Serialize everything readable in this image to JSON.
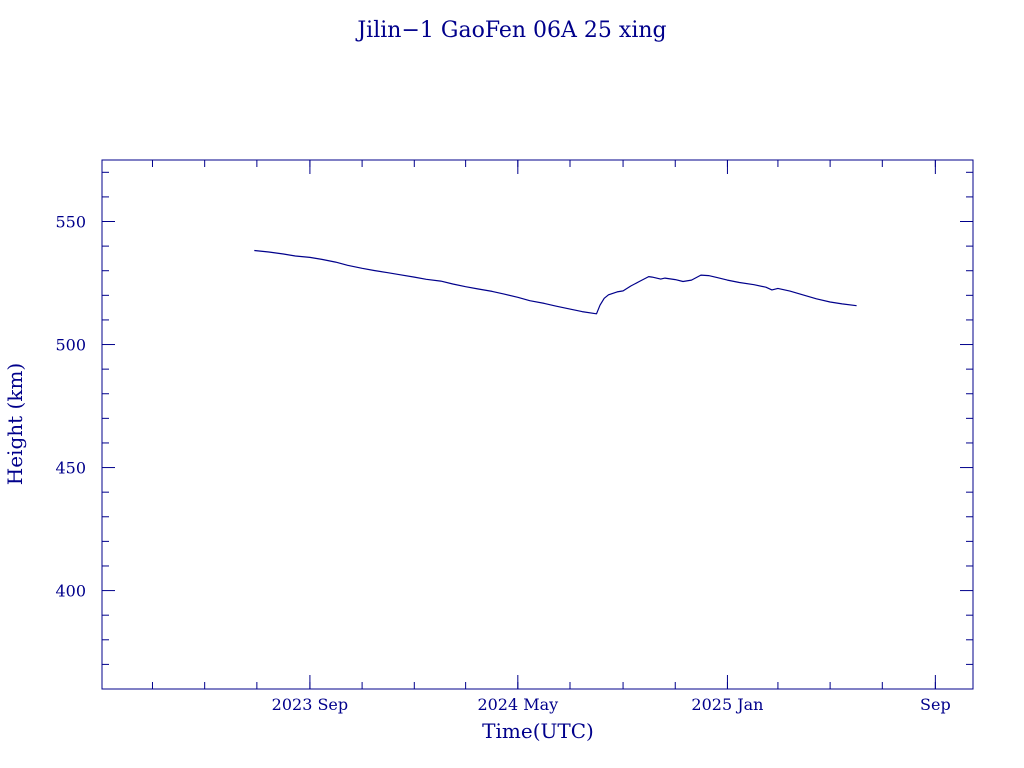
{
  "chart_data": {
    "type": "line",
    "title": "Jilin−1 GaoFen 06A 25 xing",
    "xlabel": "Time(UTC)",
    "ylabel": "Height (km)",
    "color": "#00008b",
    "xlim": [
      "2023-01-01",
      "2025-10-15"
    ],
    "ylim": [
      360,
      575
    ],
    "x_ticks": [
      {
        "date": "2023-09-01",
        "label": "2023 Sep"
      },
      {
        "date": "2024-05-01",
        "label": "2024 May"
      },
      {
        "date": "2025-01-01",
        "label": "2025 Jan"
      },
      {
        "date": "2025-09-01",
        "label": "Sep"
      }
    ],
    "y_ticks": [
      400,
      450,
      500,
      550
    ],
    "grid": false,
    "series": [
      {
        "x": [
          "2023-06-28",
          "2023-07-15",
          "2023-08-01",
          "2023-08-15",
          "2023-09-01",
          "2023-09-15",
          "2023-10-01",
          "2023-10-15",
          "2023-11-01",
          "2023-11-15",
          "2023-12-01",
          "2023-12-15",
          "2024-01-01",
          "2024-01-15",
          "2024-02-01",
          "2024-02-15",
          "2024-03-01",
          "2024-03-15",
          "2024-04-01",
          "2024-04-15",
          "2024-05-01",
          "2024-05-15",
          "2024-06-01",
          "2024-06-15",
          "2024-07-01",
          "2024-07-15",
          "2024-08-01",
          "2024-08-05",
          "2024-08-10",
          "2024-08-15",
          "2024-08-25",
          "2024-09-01",
          "2024-09-10",
          "2024-09-20",
          "2024-10-01",
          "2024-10-05",
          "2024-10-15",
          "2024-10-20",
          "2024-11-01",
          "2024-11-10",
          "2024-11-20",
          "2024-12-01",
          "2024-12-10",
          "2024-12-20",
          "2025-01-01",
          "2025-01-15",
          "2025-02-01",
          "2025-02-15",
          "2025-02-22",
          "2025-03-01",
          "2025-03-15",
          "2025-04-01",
          "2025-04-15",
          "2025-05-01",
          "2025-05-15",
          "2025-06-01"
        ],
        "values": [
          538.2,
          537.6,
          536.8,
          536.0,
          535.4,
          534.6,
          533.5,
          532.2,
          531.0,
          530.1,
          529.2,
          528.4,
          527.4,
          526.5,
          525.8,
          524.6,
          523.5,
          522.6,
          521.6,
          520.5,
          519.2,
          517.8,
          516.7,
          515.6,
          514.4,
          513.4,
          512.5,
          516.0,
          518.8,
          520.2,
          521.4,
          521.8,
          523.8,
          525.6,
          527.6,
          527.4,
          526.6,
          527.0,
          526.4,
          525.6,
          526.2,
          528.2,
          528.0,
          527.2,
          526.2,
          525.2,
          524.3,
          523.3,
          522.2,
          522.8,
          521.7,
          520.0,
          518.6,
          517.3,
          516.5,
          515.8
        ]
      }
    ]
  }
}
